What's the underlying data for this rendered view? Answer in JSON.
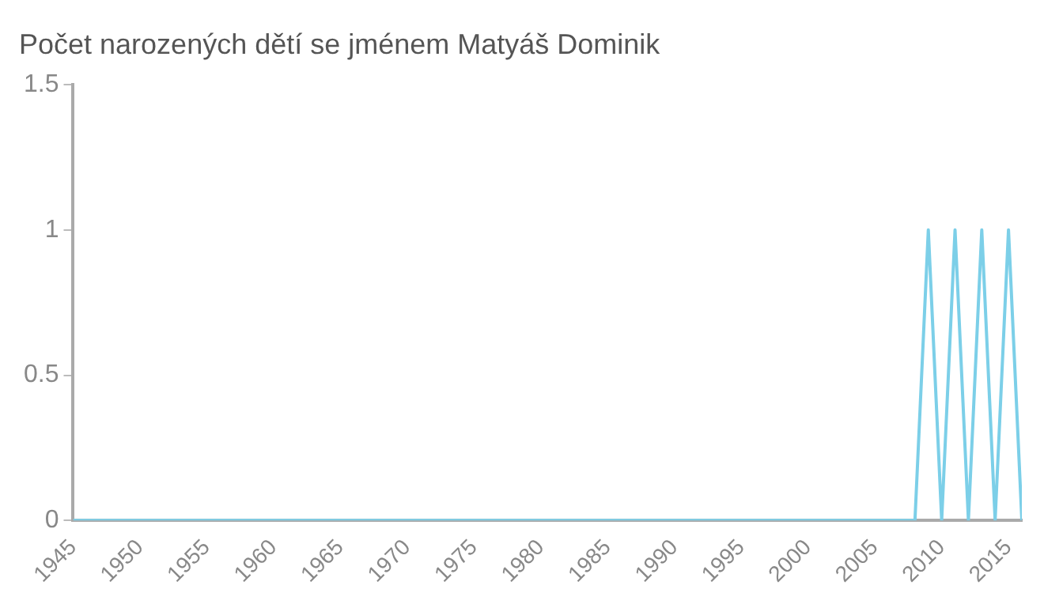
{
  "chart_data": {
    "type": "line",
    "title": "Počet narozených dětí se jménem Matyáš Dominik",
    "x": [
      1945,
      2008,
      2009,
      2010,
      2011,
      2012,
      2013,
      2014,
      2015,
      2016
    ],
    "series": [
      {
        "color": "#7ccfe8",
        "values": [
          0,
          0,
          1,
          0,
          1,
          0,
          1,
          0,
          1,
          0
        ]
      }
    ],
    "xlim": [
      1945,
      2016
    ],
    "xticks": [
      1945,
      1950,
      1955,
      1960,
      1965,
      1970,
      1975,
      1980,
      1985,
      1990,
      1995,
      2000,
      2005,
      2010,
      2015
    ],
    "ylim": [
      0,
      1.5
    ],
    "yticks": [
      0,
      0.5,
      1,
      1.5
    ],
    "grid": false,
    "legend": false,
    "marker": "none",
    "line_style": "solid"
  }
}
